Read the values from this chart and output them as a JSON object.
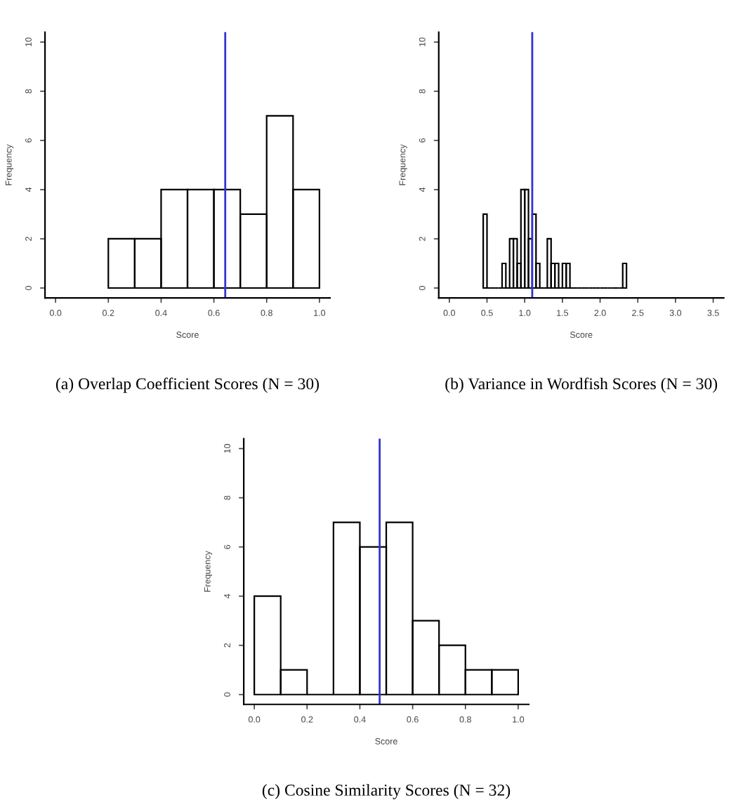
{
  "chart_data": [
    {
      "type": "histogram",
      "title": "(a) Overlap Coefficient Scores (N = 30)",
      "xlabel": "Score",
      "ylabel": "Frequency",
      "color": "#000000",
      "bins": [
        0.2,
        0.3,
        0.4,
        0.5,
        0.6,
        0.7,
        0.8,
        0.9,
        1.0
      ],
      "values": [
        2,
        2,
        4,
        4,
        4,
        3,
        7,
        4
      ],
      "xlim": [
        -0.04,
        1.04
      ],
      "ylim": [
        -0.4,
        10.4
      ],
      "xticks": [
        {
          "value": 0,
          "label": "0.0"
        },
        0.2,
        0.4,
        0.6,
        0.8,
        {
          "value": 1,
          "label": "1.0"
        }
      ],
      "yticks": [
        0,
        2,
        4,
        6,
        8,
        10
      ],
      "ref_lines": [
        {
          "axis": "x",
          "value": 0.643,
          "color": "#3333cc"
        }
      ]
    },
    {
      "type": "histogram",
      "title": "(b) Variance in Wordfish Scores (N = 30)",
      "xlabel": "Score",
      "ylabel": "Frequency",
      "color": "#000000",
      "bins": [
        0.45,
        0.5,
        0.55,
        0.6,
        0.65,
        0.7,
        0.75,
        0.8,
        0.85,
        0.9,
        0.95,
        1.0,
        1.05,
        1.1,
        1.15,
        1.2,
        1.25,
        1.3,
        1.35,
        1.4,
        1.45,
        1.5,
        1.55,
        1.6,
        1.65,
        1.7,
        1.75,
        1.8,
        1.85,
        1.9,
        1.95,
        2.0,
        2.05,
        2.1,
        2.15,
        2.2,
        2.25,
        2.3,
        2.35
      ],
      "values": [
        3,
        0,
        0,
        0,
        0,
        1,
        0,
        2,
        2,
        1,
        4,
        4,
        2,
        3,
        1,
        0,
        0,
        2,
        1,
        1,
        0,
        1,
        1,
        0,
        0,
        0,
        0,
        0,
        0,
        0,
        0,
        0,
        0,
        0,
        0,
        0,
        0,
        1
      ],
      "xlim": [
        -0.14,
        3.64
      ],
      "ylim": [
        -0.4,
        10.4
      ],
      "xticks": [
        {
          "value": 0,
          "label": "0.0"
        },
        0.5,
        {
          "value": 1,
          "label": "1.0"
        },
        1.5,
        {
          "value": 2,
          "label": "2.0"
        },
        2.5,
        {
          "value": 3,
          "label": "3.0"
        },
        3.5
      ],
      "yticks": [
        0,
        2,
        4,
        6,
        8,
        10
      ],
      "ref_lines": [
        {
          "axis": "x",
          "value": 1.1,
          "color": "#3333cc"
        }
      ]
    },
    {
      "type": "histogram",
      "title": "(c) Cosine Similarity Scores (N = 32)",
      "xlabel": "Score",
      "ylabel": "Frequency",
      "color": "#000000",
      "bins": [
        0.0,
        0.1,
        0.2,
        0.3,
        0.4,
        0.5,
        0.6,
        0.7,
        0.8,
        0.9,
        1.0
      ],
      "values": [
        4,
        1,
        0,
        7,
        6,
        7,
        3,
        2,
        1,
        1
      ],
      "xlim": [
        -0.04,
        1.04
      ],
      "ylim": [
        -0.4,
        10.4
      ],
      "xticks": [
        {
          "value": 0,
          "label": "0.0"
        },
        0.2,
        0.4,
        0.6,
        0.8,
        {
          "value": 1,
          "label": "1.0"
        }
      ],
      "yticks": [
        0,
        2,
        4,
        6,
        8,
        10
      ],
      "ref_lines": [
        {
          "axis": "x",
          "value": 0.475,
          "color": "#3333cc"
        }
      ]
    }
  ]
}
